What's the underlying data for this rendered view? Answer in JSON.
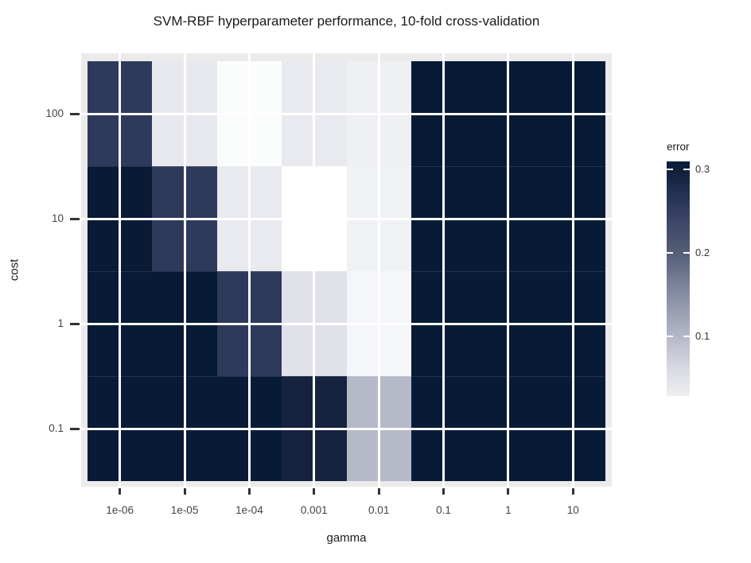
{
  "title": "SVM-RBF hyperparameter performance, 10-fold cross-validation",
  "axes": {
    "x": {
      "title": "gamma",
      "tick_labels": [
        "1e-06",
        "1e-05",
        "1e-04",
        "0.001",
        "0.01",
        "0.1",
        "1",
        "10"
      ]
    },
    "y": {
      "title": "cost",
      "tick_labels": [
        "100",
        "10",
        "1",
        "0.1"
      ]
    }
  },
  "legend": {
    "title": "error",
    "tick_labels": [
      "0.3",
      "0.2",
      "0.1"
    ],
    "tick_values": [
      0.3,
      0.2,
      0.1
    ],
    "value_range": [
      0.028,
      0.31
    ]
  },
  "colors": {
    "background": "#FFFFFF",
    "panel_background": "#EBEBEB",
    "gridline": "#FFFFFF",
    "axis_tick": "#333333",
    "axis_text": "#444444",
    "title_text": "#1A1A1A",
    "heat_high": "#071B36",
    "heat_low": "#FFFFFF"
  },
  "chart_data": {
    "type": "heatmap",
    "title": "SVM-RBF hyperparameter performance, 10-fold cross-validation",
    "xlabel": "gamma",
    "ylabel": "cost",
    "x_categories": [
      "1e-06",
      "1e-05",
      "1e-04",
      "0.001",
      "0.01",
      "0.1",
      "1",
      "10"
    ],
    "y_categories": [
      "100",
      "10",
      "1",
      "0.1"
    ],
    "legend_title": "error",
    "legend_ticks": [
      0.3,
      0.2,
      0.1
    ],
    "colorbar_range": [
      0.028,
      0.31
    ],
    "gradient": {
      "high": "#071B36",
      "low": "#F4F4F6"
    },
    "rows": [
      {
        "cost": "100",
        "errors_estimated": [
          0.26,
          0.05,
          0.03,
          0.05,
          0.04,
          0.31,
          0.31,
          0.31
        ],
        "colors": [
          "#2E3A5B",
          "#E8E9EE",
          "#FBFDFC",
          "#E9EAEF",
          "#EFF0F4",
          "#071B36",
          "#071B36",
          "#071B36"
        ]
      },
      {
        "cost": "10",
        "errors_estimated": [
          0.3,
          0.26,
          0.05,
          0.028,
          0.04,
          0.31,
          0.31,
          0.31
        ],
        "colors": [
          "#081A34",
          "#2E3A5B",
          "#E8EAEF",
          "#FFFFFF",
          "#EFF1F5",
          "#071B36",
          "#071B36",
          "#071B36"
        ]
      },
      {
        "cost": "1",
        "errors_estimated": [
          0.31,
          0.31,
          0.26,
          0.06,
          0.03,
          0.31,
          0.31,
          0.31
        ],
        "colors": [
          "#071B36",
          "#071B36",
          "#2E3A5B",
          "#E0E1E9",
          "#F5F6F9",
          "#071B36",
          "#071B36",
          "#071B36"
        ]
      },
      {
        "cost": "0.1",
        "errors_estimated": [
          0.31,
          0.31,
          0.31,
          0.29,
          0.1,
          0.31,
          0.31,
          0.31
        ],
        "colors": [
          "#071B36",
          "#071B36",
          "#071B36",
          "#16233F",
          "#B6B9C8",
          "#071B36",
          "#071B36",
          "#071B36"
        ]
      }
    ]
  }
}
